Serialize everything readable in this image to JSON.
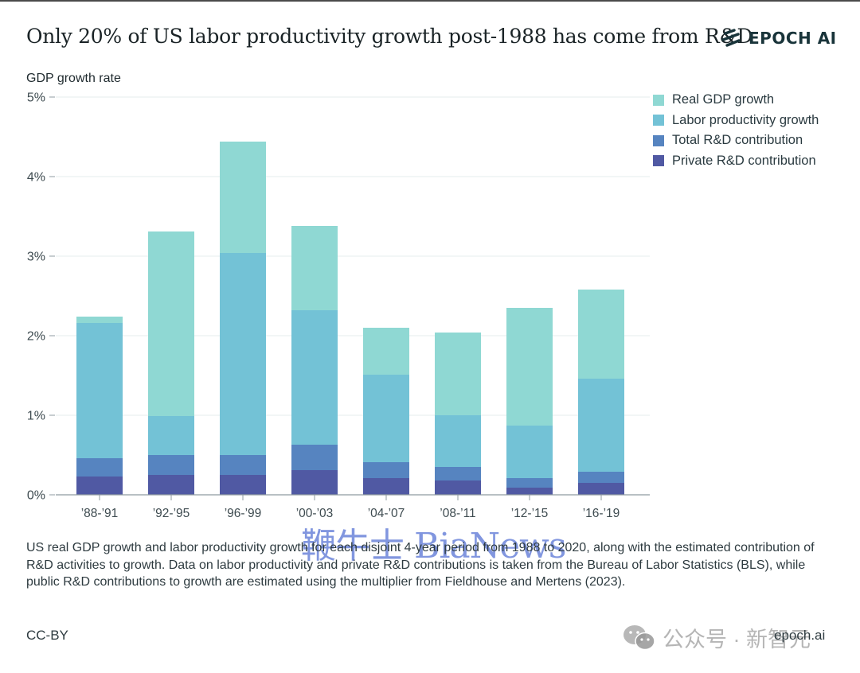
{
  "header": {
    "title": "Only 20% of US labor productivity growth post-1988 has come from R&D",
    "logo_text": "EPOCH AI",
    "logo_icon": "epoch-stripes-icon"
  },
  "colors": {
    "real_gdp": "#8fd8d3",
    "labor_productivity": "#73c2d6",
    "total_rd": "#5684c0",
    "private_rd": "#5059a3",
    "text": "#2e3b40",
    "grid": "#e6ecee",
    "axis": "#8f9ba0"
  },
  "chart_data": {
    "type": "bar",
    "stacked_as": "overlaid",
    "title": "Only 20% of US labor productivity growth post-1988 has come from R&D",
    "xlabel": "",
    "ylabel": "GDP growth rate",
    "ylim": [
      0,
      5
    ],
    "yticks": [
      0,
      1,
      2,
      3,
      4,
      5
    ],
    "ytick_labels": [
      "0%",
      "1%",
      "2%",
      "3%",
      "4%",
      "5%"
    ],
    "grid": true,
    "legend_position": "top-right",
    "categories": [
      "’88-’91",
      "’92-’95",
      "’96-’99",
      "’00-’03",
      "’04-’07",
      "’08-’11",
      "’12-’15",
      "’16-’19"
    ],
    "series": [
      {
        "name": "Real GDP growth",
        "values": [
          2.24,
          3.31,
          4.44,
          3.38,
          2.1,
          2.04,
          2.35,
          2.58
        ]
      },
      {
        "name": "Labor productivity growth",
        "values": [
          2.16,
          0.99,
          3.04,
          2.32,
          1.51,
          1.0,
          0.87,
          1.46
        ]
      },
      {
        "name": "Total R&D contribution",
        "values": [
          0.46,
          0.5,
          0.5,
          0.63,
          0.41,
          0.35,
          0.21,
          0.29
        ]
      },
      {
        "name": "Private R&D contribution",
        "values": [
          0.23,
          0.25,
          0.25,
          0.31,
          0.21,
          0.18,
          0.09,
          0.15
        ]
      }
    ]
  },
  "caption": "US real GDP growth and labor productivity growth for each disjoint 4-year period from 1988 to 2020, along with the estimated contribution of R&D activities to growth. Data on labor productivity and private R&D contributions is taken from the Bureau of Labor Statistics (BLS), while public R&D contributions to growth are estimated using the multiplier from Fieldhouse and Mertens (2023).",
  "footer": {
    "license": "CC-BY",
    "site": "epoch.ai"
  },
  "watermarks": {
    "center": "鞭牛士 BiaNews",
    "corner": "公众号 · 新智元"
  }
}
